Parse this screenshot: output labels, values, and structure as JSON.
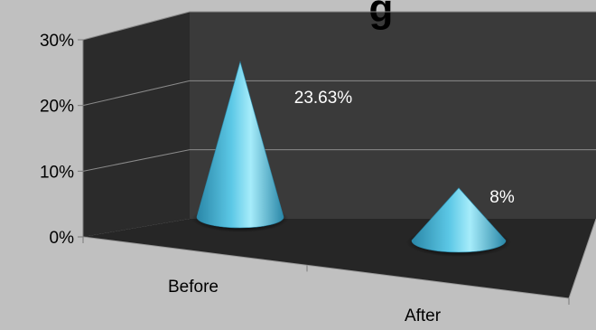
{
  "chart_data": {
    "type": "bar",
    "bar_shape": "cone",
    "is_3d": true,
    "title_visible_fragment": "g",
    "categories": [
      "Before",
      "After"
    ],
    "values": [
      23.63,
      8
    ],
    "data_labels": [
      "23.63%",
      "8%"
    ],
    "y_axis": {
      "ylim": [
        0,
        30
      ],
      "ticks": [
        0,
        10,
        20,
        30
      ],
      "tick_labels": [
        "0%",
        "10%",
        "20%",
        "30%"
      ]
    },
    "grid": true,
    "legend": "none"
  },
  "colors": {
    "background": "#c0c0c0",
    "back_wall": "#3a3a3a",
    "side_wall": "#2b2b2b",
    "floor": "#262626",
    "gridline": "#8a8a8a",
    "cone_light": "#a6ecfa",
    "cone_mid": "#5cc8e6",
    "cone_dark": "#2a87a8",
    "label_text": "#ffffff",
    "axis_text": "#000000"
  }
}
